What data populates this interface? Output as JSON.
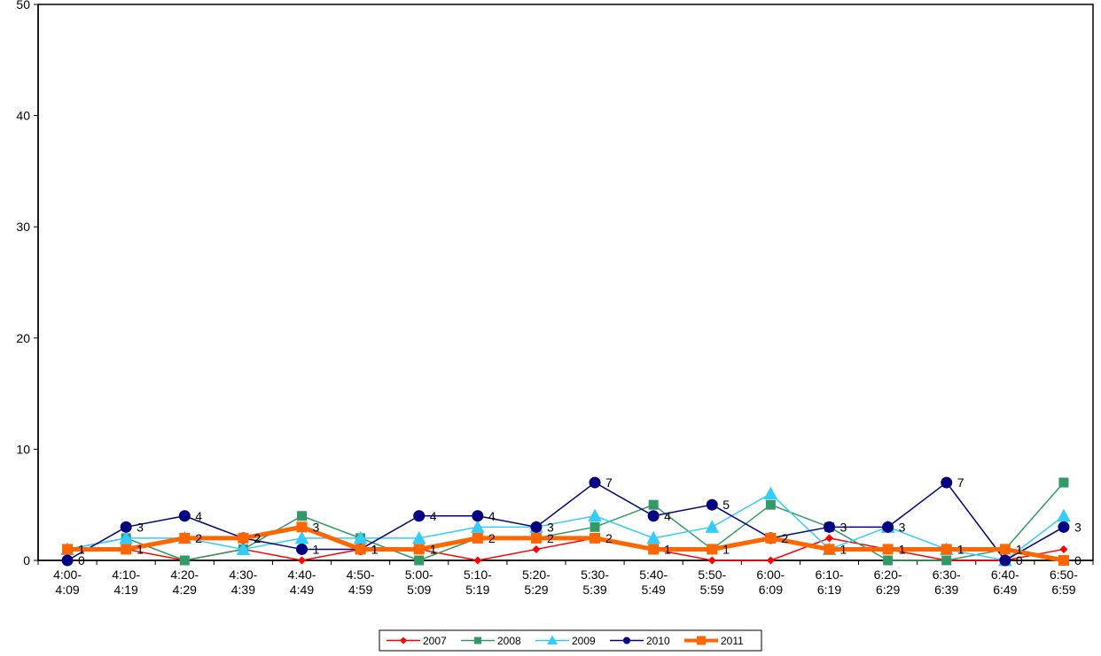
{
  "chart_data": {
    "type": "line",
    "categories": [
      [
        "4:00-",
        "4:09"
      ],
      [
        "4:10-",
        "4:19"
      ],
      [
        "4:20-",
        "4:29"
      ],
      [
        "4:30-",
        "4:39"
      ],
      [
        "4:40-",
        "4:49"
      ],
      [
        "4:50-",
        "4:59"
      ],
      [
        "5:00-",
        "5:09"
      ],
      [
        "5:10-",
        "5:19"
      ],
      [
        "5:20-",
        "5:29"
      ],
      [
        "5:30-",
        "5:39"
      ],
      [
        "5:40-",
        "5:49"
      ],
      [
        "5:50-",
        "5:59"
      ],
      [
        "6:00-",
        "6:09"
      ],
      [
        "6:10-",
        "6:19"
      ],
      [
        "6:20-",
        "6:29"
      ],
      [
        "6:30-",
        "6:39"
      ],
      [
        "6:40-",
        "6:49"
      ],
      [
        "6:50-",
        "6:59"
      ]
    ],
    "ylim": [
      0,
      50
    ],
    "yticks": [
      "0",
      "10",
      "20",
      "30",
      "40",
      "50"
    ],
    "legend_position": "bottom",
    "grid": false,
    "series": [
      {
        "name": "2007",
        "color": "#ff0000",
        "marker": "diamond",
        "width": 1.5,
        "values": [
          1,
          1,
          0,
          1,
          0,
          1,
          1,
          0,
          1,
          2,
          1,
          0,
          0,
          2,
          1,
          0,
          0,
          1
        ]
      },
      {
        "name": "2008",
        "color": "#339966",
        "marker": "square",
        "width": 1.5,
        "values": [
          1,
          2,
          0,
          1,
          4,
          2,
          0,
          2,
          2,
          3,
          5,
          1,
          5,
          3,
          0,
          0,
          1,
          7
        ]
      },
      {
        "name": "2009",
        "color": "#33ccff",
        "marker": "triangle",
        "width": 1.5,
        "values": [
          1,
          2,
          2,
          1,
          2,
          2,
          2,
          3,
          3,
          4,
          2,
          3,
          6,
          1,
          3,
          1,
          0,
          4
        ]
      },
      {
        "name": "2010",
        "color": "#000080",
        "marker": "circle",
        "width": 1.5,
        "values": [
          0,
          3,
          4,
          2,
          1,
          1,
          4,
          4,
          3,
          7,
          4,
          5,
          2,
          3,
          3,
          7,
          0,
          3
        ]
      },
      {
        "name": "2011",
        "color": "#ff6600",
        "marker": "square",
        "width": 5,
        "values": [
          1,
          1,
          2,
          2,
          3,
          1,
          1,
          2,
          2,
          2,
          1,
          1,
          2,
          1,
          1,
          1,
          1,
          0
        ]
      }
    ],
    "data_labels": [
      {
        "series": 3,
        "index": 0,
        "text": "0"
      },
      {
        "series": 3,
        "index": 1,
        "text": "3"
      },
      {
        "series": 3,
        "index": 2,
        "text": "4"
      },
      {
        "series": 3,
        "index": 3,
        "text": "2"
      },
      {
        "series": 3,
        "index": 4,
        "text": "1"
      },
      {
        "series": 3,
        "index": 5,
        "text": "1"
      },
      {
        "series": 3,
        "index": 6,
        "text": "4"
      },
      {
        "series": 3,
        "index": 7,
        "text": "4"
      },
      {
        "series": 3,
        "index": 8,
        "text": "3"
      },
      {
        "series": 3,
        "index": 9,
        "text": "7"
      },
      {
        "series": 3,
        "index": 10,
        "text": "4"
      },
      {
        "series": 3,
        "index": 11,
        "text": "5"
      },
      {
        "series": 3,
        "index": 12,
        "text": "2"
      },
      {
        "series": 3,
        "index": 13,
        "text": "3"
      },
      {
        "series": 3,
        "index": 14,
        "text": "3"
      },
      {
        "series": 3,
        "index": 15,
        "text": "7"
      },
      {
        "series": 3,
        "index": 16,
        "text": "0"
      },
      {
        "series": 3,
        "index": 17,
        "text": "3"
      },
      {
        "series": 4,
        "index": 0,
        "text": "1"
      },
      {
        "series": 4,
        "index": 1,
        "text": "1"
      },
      {
        "series": 4,
        "index": 2,
        "text": "2"
      },
      {
        "series": 4,
        "index": 3,
        "text": "2"
      },
      {
        "series": 4,
        "index": 4,
        "text": "3"
      },
      {
        "series": 4,
        "index": 5,
        "text": "1"
      },
      {
        "series": 4,
        "index": 6,
        "text": "1"
      },
      {
        "series": 4,
        "index": 7,
        "text": "2"
      },
      {
        "series": 4,
        "index": 8,
        "text": "2"
      },
      {
        "series": 4,
        "index": 9,
        "text": "2"
      },
      {
        "series": 4,
        "index": 10,
        "text": "1"
      },
      {
        "series": 4,
        "index": 11,
        "text": "1"
      },
      {
        "series": 4,
        "index": 12,
        "text": "2"
      },
      {
        "series": 4,
        "index": 13,
        "text": "1"
      },
      {
        "series": 4,
        "index": 14,
        "text": "1"
      },
      {
        "series": 4,
        "index": 15,
        "text": "1"
      },
      {
        "series": 4,
        "index": 16,
        "text": "1"
      },
      {
        "series": 4,
        "index": 17,
        "text": "0"
      }
    ]
  }
}
